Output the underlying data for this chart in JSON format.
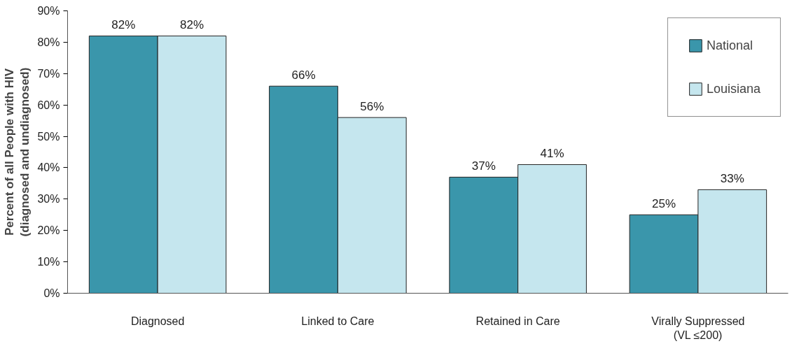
{
  "chart_data": {
    "type": "bar",
    "ylabel": "Percent of all People with HIV\n(diagnosed and undiagnosed)",
    "categories": [
      "Diagnosed",
      "Linked to Care",
      "Retained in Care",
      "Virally Suppressed\n(VL ≤200)"
    ],
    "series": [
      {
        "name": "National",
        "color": "#3a96ab",
        "values": [
          82,
          66,
          37,
          25
        ],
        "value_labels": [
          "82%",
          "66%",
          "37%",
          "25%"
        ]
      },
      {
        "name": "Louisiana",
        "color": "#c5e6ee",
        "values": [
          82,
          56,
          41,
          33
        ],
        "value_labels": [
          "82%",
          "56%",
          "41%",
          "33%"
        ]
      }
    ],
    "ylim": [
      0,
      90
    ],
    "yticks": [
      {
        "value": 0,
        "label": "0%"
      },
      {
        "value": 10,
        "label": "10%"
      },
      {
        "value": 20,
        "label": "20%"
      },
      {
        "value": 30,
        "label": "30%"
      },
      {
        "value": 40,
        "label": "40%"
      },
      {
        "value": 50,
        "label": "50%"
      },
      {
        "value": 60,
        "label": "60%"
      },
      {
        "value": 70,
        "label": "70%"
      },
      {
        "value": 80,
        "label": "80%"
      },
      {
        "value": 90,
        "label": "90%"
      }
    ],
    "grid": false,
    "legend": "top right"
  }
}
